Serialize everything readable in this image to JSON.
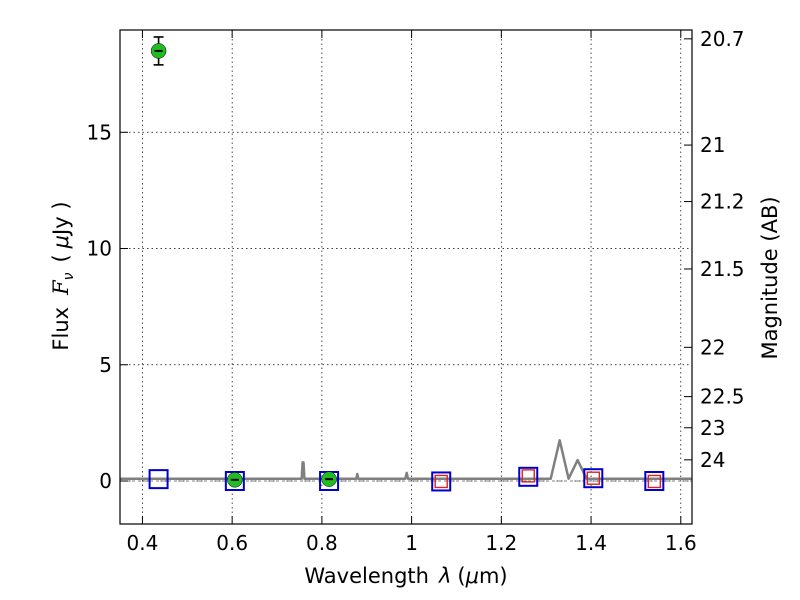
{
  "chart_data": {
    "type": "scatter",
    "xlabel_text": "Wavelength",
    "xlabel_symbol": "λ",
    "xlabel_unit_open": "(",
    "xlabel_unit_mu": "μ",
    "xlabel_unit_rest": "m)",
    "ylabel_text": "Flux",
    "ylabel_symbol": "F",
    "ylabel_subscript": "ν",
    "ylabel_unit_open": "(",
    "ylabel_unit_mu": "μ",
    "ylabel_unit_rest": "Jy )",
    "y2label": "Magnitude (AB)",
    "xlim": [
      0.35,
      1.625
    ],
    "ylim": [
      -1.85,
      19.4
    ],
    "grid": true,
    "x_ticks": [
      {
        "value": 0.4,
        "label": "0.4"
      },
      {
        "value": 0.6,
        "label": "0.6"
      },
      {
        "value": 0.8,
        "label": "0.8"
      },
      {
        "value": 1.0,
        "label": "1"
      },
      {
        "value": 1.2,
        "label": "1.2"
      },
      {
        "value": 1.4,
        "label": "1.4"
      },
      {
        "value": 1.6,
        "label": "1.6"
      }
    ],
    "y_ticks": [
      {
        "value": 0,
        "label": "0"
      },
      {
        "value": 5,
        "label": "5"
      },
      {
        "value": 10,
        "label": "10"
      },
      {
        "value": 15,
        "label": "15"
      }
    ],
    "y2_ticks": [
      {
        "label": "20.7",
        "flux": 19.02
      },
      {
        "label": "21",
        "flux": 14.45
      },
      {
        "label": "21.2",
        "flux": 12.02
      },
      {
        "label": "21.5",
        "flux": 9.12
      },
      {
        "label": "22",
        "flux": 5.75
      },
      {
        "label": "22.5",
        "flux": 3.63
      },
      {
        "label": "23",
        "flux": 2.29
      },
      {
        "label": "24",
        "flux": 0.91
      }
    ],
    "series": [
      {
        "marker": "filled-circle",
        "color": "#22bb22",
        "x": [
          0.436,
          0.606,
          0.816
        ],
        "y": [
          18.5,
          0.05,
          0.08
        ],
        "yerr": [
          0.6,
          0.15,
          0.15
        ]
      },
      {
        "marker": "open-square",
        "color": "#0000cc",
        "x": [
          0.436,
          0.606,
          0.816,
          1.066,
          1.26,
          1.405,
          1.541
        ],
        "y": [
          0.08,
          0.0,
          0.0,
          -0.02,
          0.18,
          0.12,
          0.0
        ]
      },
      {
        "marker": "open-square-small",
        "color": "#dd2222",
        "x": [
          1.066,
          1.26,
          1.405,
          1.541
        ],
        "y": [
          -0.02,
          0.22,
          0.12,
          -0.02
        ]
      },
      {
        "marker": "line",
        "color": "#808080",
        "x": [
          0.35,
          0.755,
          0.757,
          0.759,
          0.761,
          0.877,
          0.879,
          0.881,
          0.986,
          0.989,
          0.992,
          1.31,
          1.33,
          1.35,
          1.37,
          1.39,
          1.41,
          1.625
        ],
        "y": [
          0.1,
          0.1,
          0.8,
          0.8,
          0.1,
          0.1,
          0.3,
          0.1,
          0.1,
          0.35,
          0.1,
          0.1,
          1.75,
          0.1,
          0.9,
          0.1,
          0.1,
          0.1
        ]
      }
    ],
    "reference_line": {
      "y": 0,
      "color": "#808080"
    }
  }
}
